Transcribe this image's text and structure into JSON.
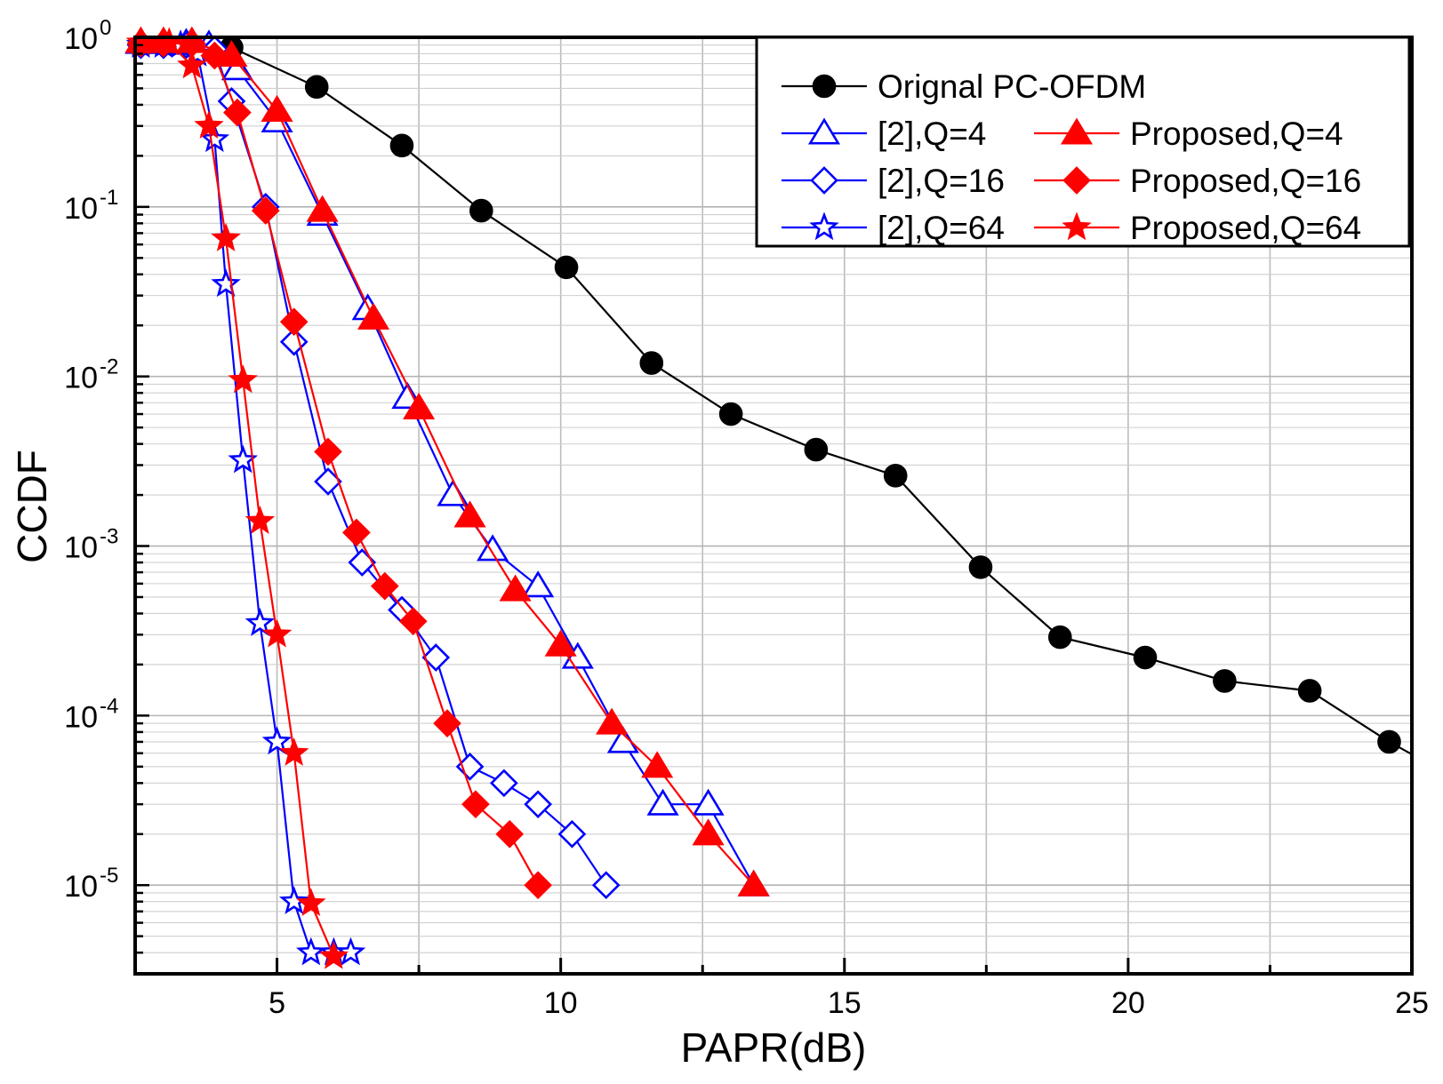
{
  "chart_data": {
    "type": "line",
    "title": "",
    "xlabel": "PAPR(dB)",
    "ylabel": "CCDF",
    "xlim": [
      2.5,
      25
    ],
    "ylim": [
      3e-06,
      1
    ],
    "y_scale": "log",
    "grid": true,
    "legend_position": "top-right",
    "x_ticks": [
      {
        "value": 5,
        "label": "5"
      },
      {
        "value": 10,
        "label": "10"
      },
      {
        "value": 15,
        "label": "15"
      },
      {
        "value": 20,
        "label": "20"
      },
      {
        "value": 25,
        "label": "25"
      }
    ],
    "y_ticks": [
      {
        "value": 1,
        "base": "10",
        "exp": "0"
      },
      {
        "value": 0.1,
        "base": "10",
        "exp": "-1"
      },
      {
        "value": 0.01,
        "base": "10",
        "exp": "-2"
      },
      {
        "value": 0.001,
        "base": "10",
        "exp": "-3"
      },
      {
        "value": 0.0001,
        "base": "10",
        "exp": "-4"
      },
      {
        "value": 1e-05,
        "base": "10",
        "exp": "-5"
      }
    ],
    "series": [
      {
        "name": "Orignal PC-OFDM",
        "color": "#000000",
        "marker": "circle",
        "filled": true,
        "x": [
          4.2,
          5.7,
          7.2,
          8.6,
          10.1,
          11.6,
          13.0,
          14.5,
          15.9,
          17.4,
          18.8,
          20.3,
          21.7,
          23.2,
          24.6
        ],
        "y": [
          0.87,
          0.51,
          0.23,
          0.095,
          0.044,
          0.012,
          0.006,
          0.0037,
          0.0026,
          0.00075,
          0.00029,
          0.00022,
          0.00016,
          0.00014,
          7e-05
        ]
      },
      {
        "name": "[2],Q=4",
        "color": "#0000ff",
        "marker": "triangle",
        "filled": false,
        "x": [
          2.6,
          3.0,
          3.4,
          3.8,
          4.3,
          5.0,
          5.8,
          6.6,
          7.3,
          8.1,
          8.8,
          9.6,
          10.3,
          11.1,
          11.8,
          12.6,
          13.4
        ],
        "y": [
          0.93,
          0.93,
          0.92,
          0.9,
          0.65,
          0.32,
          0.09,
          0.025,
          0.0075,
          0.002,
          0.00095,
          0.00058,
          0.00022,
          7e-05,
          3e-05,
          3e-05,
          1e-05
        ]
      },
      {
        "name": "[2],Q=16",
        "color": "#0000ff",
        "marker": "diamond",
        "filled": false,
        "x": [
          2.6,
          3.0,
          3.4,
          3.9,
          4.2,
          4.8,
          5.3,
          5.9,
          6.5,
          7.2,
          7.8,
          8.4,
          9.0,
          9.6,
          10.2,
          10.8
        ],
        "y": [
          0.9,
          0.9,
          0.9,
          0.85,
          0.42,
          0.1,
          0.016,
          0.0024,
          0.0008,
          0.00042,
          0.00022,
          5e-05,
          4e-05,
          3e-05,
          2e-05,
          1e-05
        ]
      },
      {
        "name": "[2],Q=64",
        "color": "#0000ff",
        "marker": "star",
        "filled": false,
        "x": [
          2.6,
          3.0,
          3.3,
          3.6,
          3.9,
          4.1,
          4.4,
          4.7,
          5.0,
          5.3,
          5.6,
          6.0,
          6.3
        ],
        "y": [
          0.9,
          0.9,
          0.9,
          0.8,
          0.25,
          0.035,
          0.0032,
          0.00035,
          7e-05,
          8e-06,
          4e-06,
          4e-06,
          4e-06
        ]
      },
      {
        "name": "Proposed,Q=4",
        "color": "#ff0000",
        "marker": "triangle",
        "filled": true,
        "x": [
          2.6,
          3.0,
          3.5,
          4.2,
          5.0,
          5.8,
          6.7,
          7.5,
          8.4,
          9.2,
          10.0,
          10.9,
          11.7,
          12.6,
          13.4
        ],
        "y": [
          0.94,
          0.94,
          0.94,
          0.78,
          0.37,
          0.095,
          0.022,
          0.0065,
          0.0015,
          0.00055,
          0.00026,
          9e-05,
          5e-05,
          2e-05,
          1e-05
        ]
      },
      {
        "name": "Proposed,Q=16",
        "color": "#ff0000",
        "marker": "diamond",
        "filled": true,
        "x": [
          2.6,
          3.0,
          3.5,
          3.9,
          4.3,
          4.8,
          5.3,
          5.9,
          6.4,
          6.9,
          7.4,
          8.0,
          8.5,
          9.1,
          9.6
        ],
        "y": [
          0.92,
          0.92,
          0.92,
          0.78,
          0.36,
          0.095,
          0.021,
          0.0036,
          0.0012,
          0.00058,
          0.00036,
          9e-05,
          3e-05,
          2e-05,
          1e-05
        ]
      },
      {
        "name": "Proposed,Q=64",
        "color": "#ff0000",
        "marker": "star",
        "filled": true,
        "x": [
          2.6,
          3.1,
          3.5,
          3.8,
          4.1,
          4.4,
          4.7,
          5.0,
          5.3,
          5.6,
          6.0
        ],
        "y": [
          0.93,
          0.93,
          0.68,
          0.3,
          0.065,
          0.0095,
          0.0014,
          0.0003,
          6e-05,
          7.8e-06,
          3.8e-06
        ]
      }
    ],
    "legend": {
      "rows": [
        [
          "Orignal PC-OFDM"
        ],
        [
          "[2],Q=4",
          "Proposed,Q=4"
        ],
        [
          "[2],Q=16",
          "Proposed,Q=16"
        ],
        [
          "[2],Q=64",
          "Proposed,Q=64"
        ]
      ]
    }
  }
}
